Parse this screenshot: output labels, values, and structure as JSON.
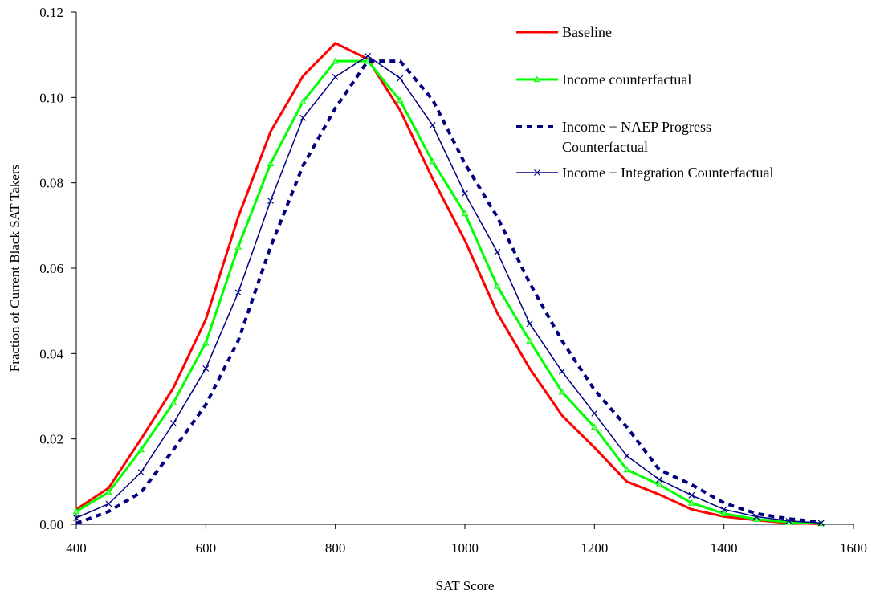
{
  "chart_data": {
    "type": "line",
    "title": "",
    "xlabel": "SAT Score",
    "ylabel": "Fraction of Current Black SAT Takers",
    "xlim": [
      400,
      1600
    ],
    "ylim": [
      0,
      0.12
    ],
    "x_ticks": [
      "400",
      "600",
      "800",
      "1000",
      "1200",
      "1400",
      "1600"
    ],
    "y_ticks": [
      "0.00",
      "0.02",
      "0.04",
      "0.06",
      "0.08",
      "0.10",
      "0.12"
    ],
    "grid": false,
    "legend_position": "top-right",
    "x": [
      400,
      450,
      500,
      550,
      600,
      650,
      700,
      750,
      800,
      850,
      900,
      950,
      1000,
      1050,
      1100,
      1150,
      1200,
      1250,
      1300,
      1350,
      1400,
      1450,
      1500,
      1550
    ],
    "series": [
      {
        "name": "Baseline",
        "color": "#ff0000",
        "style": "solid",
        "marker": "none",
        "values": [
          0.0035,
          0.0085,
          0.02,
          0.032,
          0.048,
          0.072,
          0.092,
          0.105,
          0.1127,
          0.109,
          0.097,
          0.081,
          0.0665,
          0.0495,
          0.0365,
          0.0255,
          0.018,
          0.01,
          0.007,
          0.0035,
          0.0018,
          0.001,
          0.0003,
          0.0001
        ]
      },
      {
        "name": "Income counterfactual",
        "color": "#00ff00",
        "style": "solid",
        "marker": "triangle",
        "values": [
          0.003,
          0.0075,
          0.0175,
          0.0285,
          0.0425,
          0.065,
          0.0845,
          0.099,
          0.1085,
          0.1085,
          0.0993,
          0.085,
          0.0728,
          0.0558,
          0.043,
          0.031,
          0.0228,
          0.0128,
          0.0093,
          0.005,
          0.0025,
          0.0012,
          0.0005,
          0.0002
        ]
      },
      {
        "name": "Income + NAEP Progress Counterfactual",
        "color": "#000080",
        "style": "dashed",
        "marker": "none",
        "values": [
          0.0002,
          0.003,
          0.0075,
          0.0175,
          0.028,
          0.043,
          0.065,
          0.084,
          0.0975,
          0.1085,
          0.1085,
          0.0995,
          0.0845,
          0.072,
          0.0565,
          0.043,
          0.0315,
          0.0228,
          0.0128,
          0.0093,
          0.005,
          0.0025,
          0.0013,
          0.0005
        ]
      },
      {
        "name": "Income + Integration Counterfactual",
        "color": "#000080",
        "style": "solid-thin",
        "marker": "x",
        "values": [
          0.0015,
          0.0048,
          0.0122,
          0.0237,
          0.0365,
          0.0543,
          0.0758,
          0.0952,
          0.1048,
          0.1097,
          0.1045,
          0.0935,
          0.0775,
          0.0638,
          0.047,
          0.0358,
          0.026,
          0.016,
          0.0105,
          0.0068,
          0.0035,
          0.0018,
          0.0008,
          0.0003
        ]
      }
    ],
    "legend_lines": [
      [
        "Baseline"
      ],
      [
        "Income counterfactual"
      ],
      [
        "Income + NAEP Progress",
        "Counterfactual"
      ],
      [
        "Income + Integration Counterfactual"
      ]
    ]
  }
}
